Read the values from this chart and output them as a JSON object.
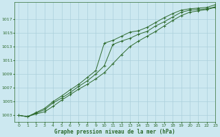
{
  "title": "Graphe pression niveau de la mer (hPa)",
  "background_color": "#cce8f0",
  "grid_color": "#aacfdb",
  "line_color": "#2d6a2d",
  "xlim": [
    -0.5,
    23
  ],
  "ylim": [
    1002.0,
    1019.5
  ],
  "yticks": [
    1003,
    1005,
    1007,
    1009,
    1011,
    1013,
    1015,
    1017
  ],
  "xticks": [
    0,
    1,
    2,
    3,
    4,
    5,
    6,
    7,
    8,
    9,
    10,
    11,
    12,
    13,
    14,
    15,
    16,
    17,
    18,
    19,
    20,
    21,
    22,
    23
  ],
  "line1_x": [
    0,
    1,
    2,
    3,
    4,
    5,
    6,
    7,
    8,
    9,
    10,
    11,
    12,
    13,
    14,
    15,
    16,
    17,
    18,
    19,
    20,
    21,
    22,
    23
  ],
  "line1_y": [
    1003.0,
    1002.8,
    1003.2,
    1003.5,
    1004.3,
    1005.2,
    1006.0,
    1006.8,
    1007.5,
    1008.3,
    1009.2,
    1010.5,
    1011.8,
    1013.0,
    1013.8,
    1014.5,
    1015.2,
    1016.0,
    1016.8,
    1017.5,
    1018.0,
    1018.2,
    1018.4,
    1018.7
  ],
  "line2_x": [
    0,
    1,
    2,
    3,
    4,
    5,
    6,
    7,
    8,
    9,
    10,
    11,
    12,
    13,
    14,
    15,
    16,
    17,
    18,
    19,
    20,
    21,
    22,
    23
  ],
  "line2_y": [
    1003.0,
    1002.8,
    1003.3,
    1003.8,
    1004.8,
    1005.5,
    1006.3,
    1007.2,
    1008.0,
    1009.0,
    1010.2,
    1013.3,
    1013.8,
    1014.2,
    1014.8,
    1015.2,
    1016.0,
    1016.6,
    1017.3,
    1018.0,
    1018.3,
    1018.4,
    1018.5,
    1018.8
  ],
  "line3_x": [
    0,
    1,
    2,
    3,
    4,
    5,
    6,
    7,
    8,
    9,
    10,
    11,
    12,
    13,
    14,
    15,
    16,
    17,
    18,
    19,
    20,
    21,
    22,
    23
  ],
  "line3_y": [
    1003.0,
    1002.8,
    1003.4,
    1004.0,
    1005.0,
    1005.8,
    1006.7,
    1007.5,
    1008.5,
    1009.5,
    1013.5,
    1013.9,
    1014.5,
    1015.1,
    1015.3,
    1015.8,
    1016.5,
    1017.2,
    1017.8,
    1018.3,
    1018.5,
    1018.6,
    1018.7,
    1019.1
  ]
}
